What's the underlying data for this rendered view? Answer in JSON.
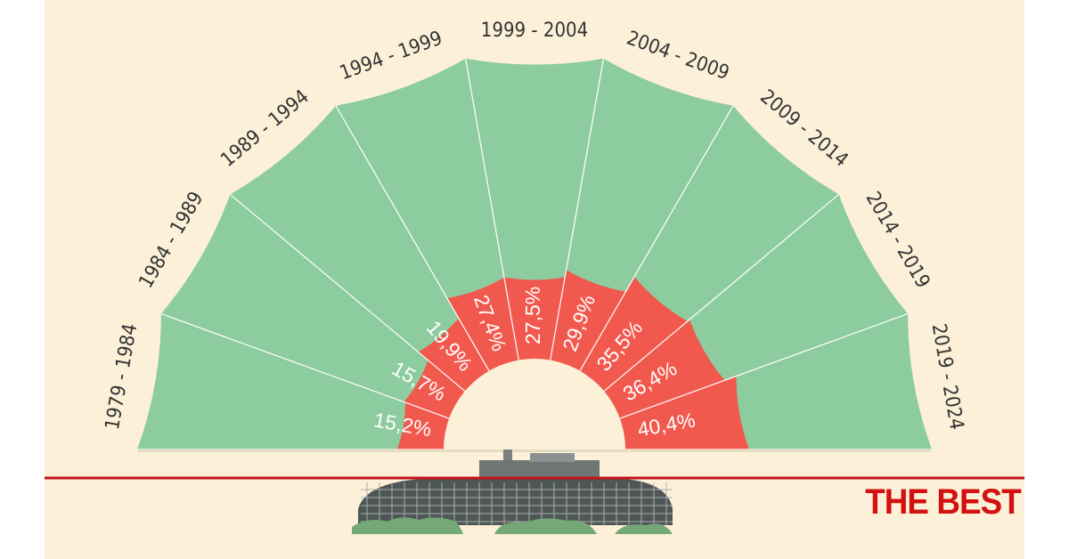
{
  "colors": {
    "background": "#fcf0d8",
    "outer_wedge": "#8ccc9f",
    "inner_wedge": "#f2594e",
    "center": "#fcf0d8",
    "divider": "#ffffff",
    "baseline": "#c4131a",
    "brand": "#d31111"
  },
  "brand": {
    "text": "THE BEST"
  },
  "chart_data": {
    "type": "radial-bar",
    "title": "",
    "categories": [
      "1979 - 1984",
      "1984 - 1989",
      "1989 - 1994",
      "1994 - 1999",
      "1999 - 2004",
      "2004 - 2009",
      "2009 - 2014",
      "2014 - 2019",
      "2019 - 2024"
    ],
    "values": [
      15.2,
      15.7,
      19.9,
      27.4,
      27.5,
      29.9,
      35.5,
      36.4,
      40.4
    ],
    "labels": [
      "15,2%",
      "15,7%",
      "19,9%",
      "27,4%",
      "27,5%",
      "29,9%",
      "35,5%",
      "36,4%",
      "40,4%"
    ],
    "unit": "%",
    "max": 100,
    "legend": "none",
    "grid": false
  }
}
